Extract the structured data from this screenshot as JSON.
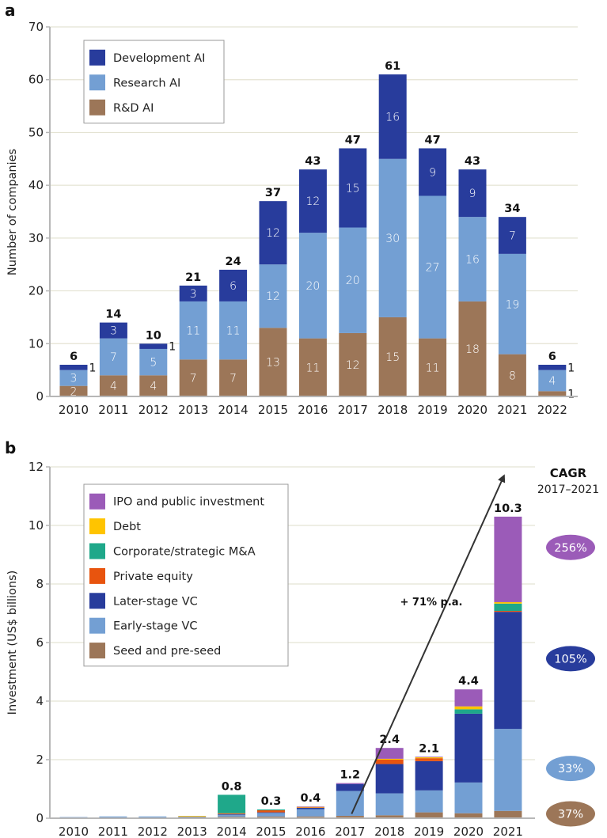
{
  "chart_data": [
    {
      "id": "a",
      "panel_letter": "a",
      "type": "bar",
      "stacked": true,
      "title": "",
      "xlabel": "",
      "ylabel": "Number of companies",
      "ylim": [
        0,
        70
      ],
      "yticks": [
        0,
        10,
        20,
        30,
        40,
        50,
        60,
        70
      ],
      "grid": true,
      "legend_position": "top-left",
      "categories": [
        "2010",
        "2011",
        "2012",
        "2013",
        "2014",
        "2015",
        "2016",
        "2017",
        "2018",
        "2019",
        "2020",
        "2021",
        "2022"
      ],
      "series": [
        {
          "name": "R&D AI",
          "color": "#9c7658",
          "values": [
            2,
            4,
            4,
            7,
            7,
            13,
            11,
            12,
            15,
            11,
            18,
            8,
            1
          ]
        },
        {
          "name": "Research AI",
          "color": "#739fd3",
          "values": [
            3,
            7,
            5,
            11,
            11,
            12,
            20,
            20,
            30,
            27,
            16,
            19,
            4
          ]
        },
        {
          "name": "Development AI",
          "color": "#283c9c",
          "values": [
            1,
            3,
            1,
            3,
            6,
            12,
            12,
            15,
            16,
            9,
            9,
            7,
            1
          ]
        }
      ],
      "legend_order": [
        "Development AI",
        "Research AI",
        "R&D AI"
      ],
      "totals": [
        6,
        14,
        10,
        21,
        24,
        37,
        43,
        47,
        61,
        47,
        43,
        34,
        6
      ],
      "outside_labels": [
        {
          "category": "2010",
          "series": "Development AI",
          "text": "1"
        },
        {
          "category": "2012",
          "series": "Development AI",
          "text": "1"
        },
        {
          "category": "2022",
          "series": "Development AI",
          "text": "1"
        },
        {
          "category": "2022",
          "series": "R&D AI",
          "text": "1"
        }
      ]
    },
    {
      "id": "b",
      "panel_letter": "b",
      "type": "bar",
      "stacked": true,
      "title": "",
      "xlabel": "",
      "ylabel": "Investment (US$ billions)",
      "ylim": [
        0,
        12
      ],
      "yticks": [
        0,
        2,
        4,
        6,
        8,
        10,
        12
      ],
      "grid": true,
      "legend_position": "top-left",
      "categories": [
        "2010",
        "2011",
        "2012",
        "2013",
        "2014",
        "2015",
        "2016",
        "2017",
        "2018",
        "2019",
        "2020",
        "2021"
      ],
      "series": [
        {
          "name": "Seed and pre-seed",
          "color": "#9c7658",
          "values": [
            0.01,
            0.02,
            0.02,
            0.04,
            0.05,
            0.06,
            0.06,
            0.08,
            0.1,
            0.2,
            0.17,
            0.25
          ]
        },
        {
          "name": "Early-stage VC",
          "color": "#739fd3",
          "values": [
            0.03,
            0.04,
            0.04,
            0.02,
            0.07,
            0.12,
            0.25,
            0.85,
            0.75,
            0.75,
            1.05,
            2.8
          ]
        },
        {
          "name": "Later-stage VC",
          "color": "#283c9c",
          "values": [
            0,
            0,
            0,
            0,
            0.02,
            0.02,
            0.05,
            0.24,
            1.0,
            1.0,
            2.35,
            4.0
          ]
        },
        {
          "name": "Private equity",
          "color": "#e8540e",
          "values": [
            0,
            0,
            0,
            0,
            0.03,
            0.07,
            0.01,
            0,
            0.15,
            0.1,
            0,
            0.03
          ]
        },
        {
          "name": "Corporate/strategic M&A",
          "color": "#1fa88a",
          "values": [
            0,
            0,
            0,
            0,
            0.63,
            0.03,
            0,
            0,
            0,
            0,
            0.15,
            0.25
          ]
        },
        {
          "name": "Debt",
          "color": "#ffc400",
          "values": [
            0,
            0,
            0,
            0.02,
            0,
            0,
            0.02,
            0,
            0.03,
            0.03,
            0.1,
            0.05
          ]
        },
        {
          "name": "IPO and public investment",
          "color": "#9b5bb8",
          "values": [
            0,
            0,
            0,
            0,
            0,
            0,
            0.01,
            0.03,
            0.37,
            0.02,
            0.58,
            2.92
          ]
        }
      ],
      "legend_order": [
        "IPO and public investment",
        "Debt",
        "Corporate/strategic M&A",
        "Private equity",
        "Later-stage VC",
        "Early-stage VC",
        "Seed and pre-seed"
      ],
      "totals": [
        null,
        null,
        null,
        null,
        "0.8",
        "0.3",
        "0.4",
        "1.2",
        "2.4",
        "2.1",
        "4.4",
        "10.3"
      ],
      "annotation": {
        "text": "+ 71% p.a.",
        "arrow_from": [
          "2017",
          1.5
        ],
        "arrow_to": [
          "2021",
          11.7
        ]
      },
      "cagr": {
        "title": "CAGR",
        "period": "2017–2021",
        "badges": [
          {
            "series": "IPO and public investment",
            "value": "256%",
            "color": "#9b5bb8",
            "y": 9.25
          },
          {
            "series": "Later-stage VC",
            "value": "105%",
            "color": "#283c9c",
            "y": 5.45
          },
          {
            "series": "Early-stage VC",
            "value": "33%",
            "color": "#739fd3",
            "y": 1.7
          },
          {
            "series": "Seed and pre-seed",
            "value": "37%",
            "color": "#9c7658",
            "y": 0.15
          }
        ]
      }
    }
  ]
}
